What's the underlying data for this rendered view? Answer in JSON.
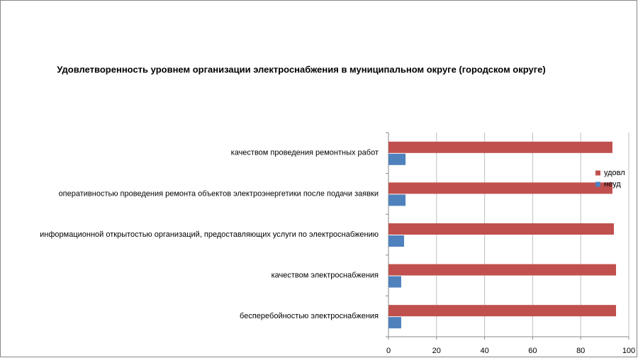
{
  "chart_data": {
    "type": "barh",
    "title": "Удовлетворенность уровнем организации электроснабжения в муниципальном округе (городском округе)",
    "categories": [
      "бесперебойностью электроснабжения",
      "качеством электроснабжения",
      "информационной открытостью организаций, предоставляющих услуги по электроснабжению",
      "оперативностью проведения ремонта объектов электроэнергетики после подачи заявки",
      "качеством проведения ремонтных работ"
    ],
    "series": [
      {
        "name": "удовл",
        "color": "#c0504d",
        "values": [
          94.7,
          94.7,
          93.8,
          93.2,
          93.2
        ]
      },
      {
        "name": "неуд",
        "color": "#4f81bd",
        "values": [
          5.3,
          5.3,
          6.5,
          7.1,
          7.1
        ]
      }
    ],
    "xlim": [
      0,
      100
    ],
    "xticks": [
      0,
      20,
      40,
      60,
      80,
      100
    ],
    "grid": true,
    "legend": "right"
  }
}
